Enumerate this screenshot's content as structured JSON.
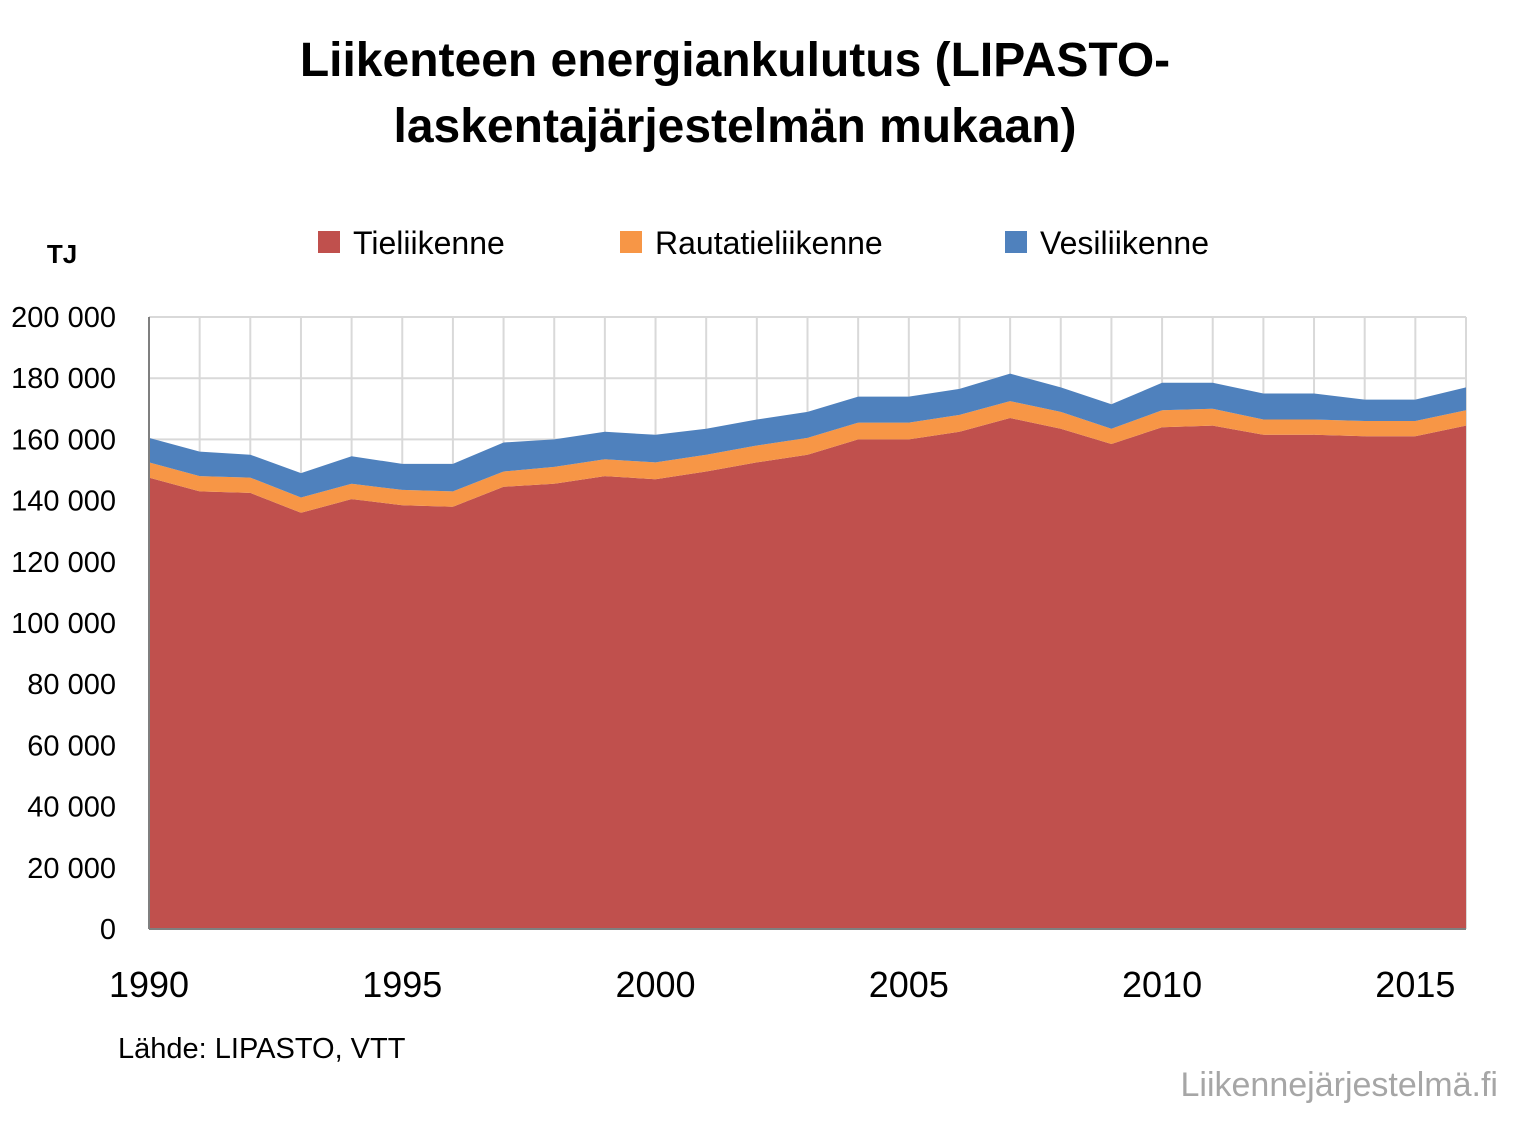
{
  "title_line1": "Liikenteen energiankulutus (LIPASTO-",
  "title_line2": "laskentajärjestelmän mukaan)",
  "source": "Lähde: LIPASTO, VTT",
  "watermark": "Liikennejärjestelmä.fi",
  "colors": {
    "Tieliikenne": "#c0504d",
    "Rautatieliikenne": "#f79646",
    "Vesiliikenne": "#4f81bd",
    "grid": "#d9d9d9",
    "axis": "#7f7f7f"
  },
  "chart_data": {
    "type": "area",
    "stacked": true,
    "ylabel": "TJ",
    "ylim": [
      0,
      200000
    ],
    "yticks": [
      0,
      20000,
      40000,
      60000,
      80000,
      100000,
      120000,
      140000,
      160000,
      180000,
      200000
    ],
    "ytick_labels": [
      "0",
      "20 000",
      "40 000",
      "60 000",
      "80 000",
      "100 000",
      "120 000",
      "140 000",
      "160 000",
      "180 000",
      "200 000"
    ],
    "xtick_labels": [
      "1990",
      "1995",
      "2000",
      "2005",
      "2010",
      "2015"
    ],
    "xtick_values": [
      1990,
      1995,
      2000,
      2005,
      2010,
      2015
    ],
    "grid": true,
    "legend_position": "top",
    "x": [
      1990,
      1991,
      1992,
      1993,
      1994,
      1995,
      1996,
      1997,
      1998,
      1999,
      2000,
      2001,
      2002,
      2003,
      2004,
      2005,
      2006,
      2007,
      2008,
      2009,
      2010,
      2011,
      2012,
      2013,
      2014,
      2015,
      2016
    ],
    "series": [
      {
        "name": "Tieliikenne",
        "values": [
          147500,
          143000,
          142500,
          136000,
          140500,
          138500,
          138000,
          144500,
          145500,
          148000,
          147000,
          149500,
          152500,
          155000,
          160000,
          160000,
          162500,
          167000,
          163500,
          158500,
          164000,
          164500,
          161500,
          161500,
          161000,
          161000,
          164500
        ]
      },
      {
        "name": "Rautatieliikenne",
        "values": [
          5000,
          5000,
          5000,
          5000,
          5000,
          5000,
          5000,
          5000,
          5500,
          5500,
          5500,
          5500,
          5500,
          5500,
          5500,
          5500,
          5500,
          5500,
          5500,
          5000,
          5500,
          5500,
          5000,
          5000,
          5000,
          5000,
          5000
        ]
      },
      {
        "name": "Vesiliikenne",
        "values": [
          8000,
          8000,
          7500,
          8000,
          9000,
          8500,
          9000,
          9500,
          9000,
          9000,
          9000,
          8500,
          8500,
          8500,
          8500,
          8500,
          8500,
          9000,
          8000,
          8000,
          9000,
          8500,
          8500,
          8500,
          7000,
          7000,
          7500
        ]
      }
    ]
  }
}
